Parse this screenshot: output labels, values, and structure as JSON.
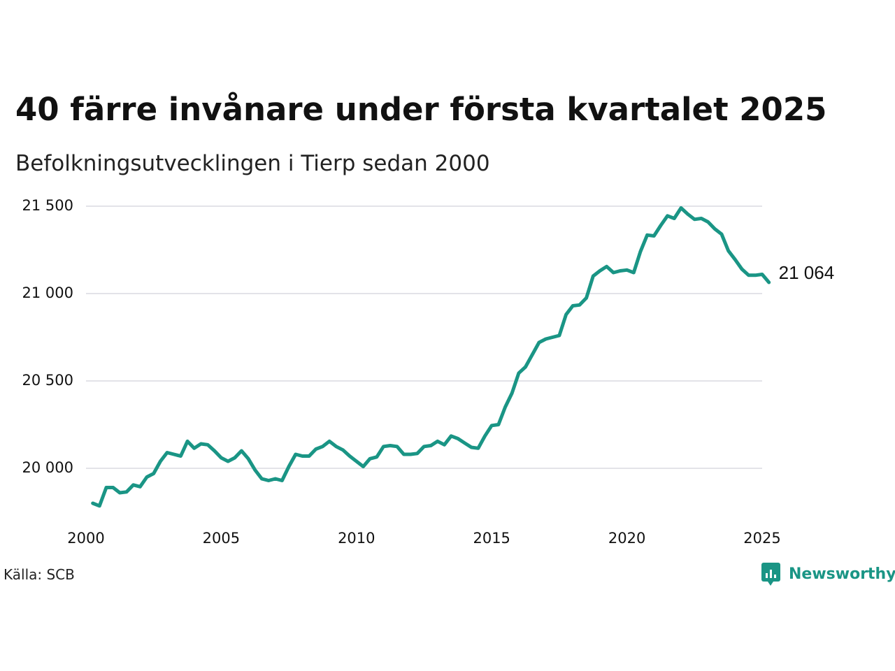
{
  "chart_data": {
    "type": "line",
    "title": "40 färre invånare under första kvartalet 2025",
    "subtitle": "Befolkningsutvecklingen i Tierp sedan 2000",
    "source": "Källa: SCB",
    "brand": "Newsworthy",
    "xlabel": "",
    "ylabel": "",
    "xlim": [
      2000,
      2025.25
    ],
    "ylim": [
      19800,
      21510
    ],
    "x_ticks": [
      2000,
      2005,
      2010,
      2015,
      2020,
      2025
    ],
    "x_tick_labels": [
      "2000",
      "2005",
      "2010",
      "2015",
      "2020",
      "2025"
    ],
    "y_ticks": [
      20000,
      20500,
      21000,
      21500
    ],
    "y_tick_labels": [
      "20 000",
      "20 500",
      "21 000",
      "21 500"
    ],
    "grid": "horizontal",
    "legend": "none",
    "end_label": "21 064",
    "line_color": "#1a9585",
    "series": [
      {
        "x": [
          2000.25,
          2000.5,
          2000.75,
          2001,
          2001.25,
          2001.5,
          2001.75,
          2002,
          2002.25,
          2002.5,
          2002.75,
          2003,
          2003.25,
          2003.5,
          2003.75,
          2004,
          2004.25,
          2004.5,
          2004.75,
          2005,
          2005.25,
          2005.5,
          2005.75,
          2006,
          2006.25,
          2006.5,
          2006.75,
          2007,
          2007.25,
          2007.5,
          2007.75,
          2008,
          2008.25,
          2008.5,
          2008.75,
          2009,
          2009.25,
          2009.5,
          2009.75,
          2010,
          2010.25,
          2010.5,
          2010.75,
          2011,
          2011.25,
          2011.5,
          2011.75,
          2012,
          2012.25,
          2012.5,
          2012.75,
          2013,
          2013.25,
          2013.5,
          2013.75,
          2014,
          2014.25,
          2014.5,
          2014.75,
          2015,
          2015.25,
          2015.5,
          2015.75,
          2016,
          2016.25,
          2016.5,
          2016.75,
          2017,
          2017.25,
          2017.5,
          2017.75,
          2018,
          2018.25,
          2018.5,
          2018.75,
          2019,
          2019.25,
          2019.5,
          2019.75,
          2020,
          2020.25,
          2020.5,
          2020.75,
          2021,
          2021.25,
          2021.5,
          2021.75,
          2022,
          2022.25,
          2022.5,
          2022.75,
          2023,
          2023.25,
          2023.5,
          2023.75,
          2024,
          2024.25,
          2024.5,
          2024.75,
          2025,
          2025.25
        ],
        "values": [
          19800,
          19785,
          19890,
          19890,
          19860,
          19865,
          19905,
          19895,
          19950,
          19970,
          20040,
          20090,
          20080,
          20070,
          20155,
          20115,
          20140,
          20135,
          20100,
          20060,
          20040,
          20060,
          20100,
          20055,
          19990,
          19940,
          19930,
          19940,
          19930,
          20010,
          20080,
          20070,
          20070,
          20110,
          20125,
          20155,
          20125,
          20105,
          20070,
          20040,
          20010,
          20055,
          20065,
          20125,
          20130,
          20125,
          20080,
          20080,
          20085,
          20125,
          20130,
          20155,
          20135,
          20185,
          20170,
          20145,
          20120,
          20115,
          20185,
          20245,
          20250,
          20350,
          20430,
          20545,
          20580,
          20650,
          20720,
          20740,
          20750,
          20760,
          20880,
          20930,
          20935,
          20975,
          21100,
          21130,
          21155,
          21120,
          21130,
          21135,
          21120,
          21240,
          21335,
          21330,
          21390,
          21445,
          21430,
          21490,
          21455,
          21425,
          21430,
          21410,
          21370,
          21340,
          21245,
          21195,
          21140,
          21105,
          21105,
          21110,
          21064
        ]
      }
    ]
  }
}
